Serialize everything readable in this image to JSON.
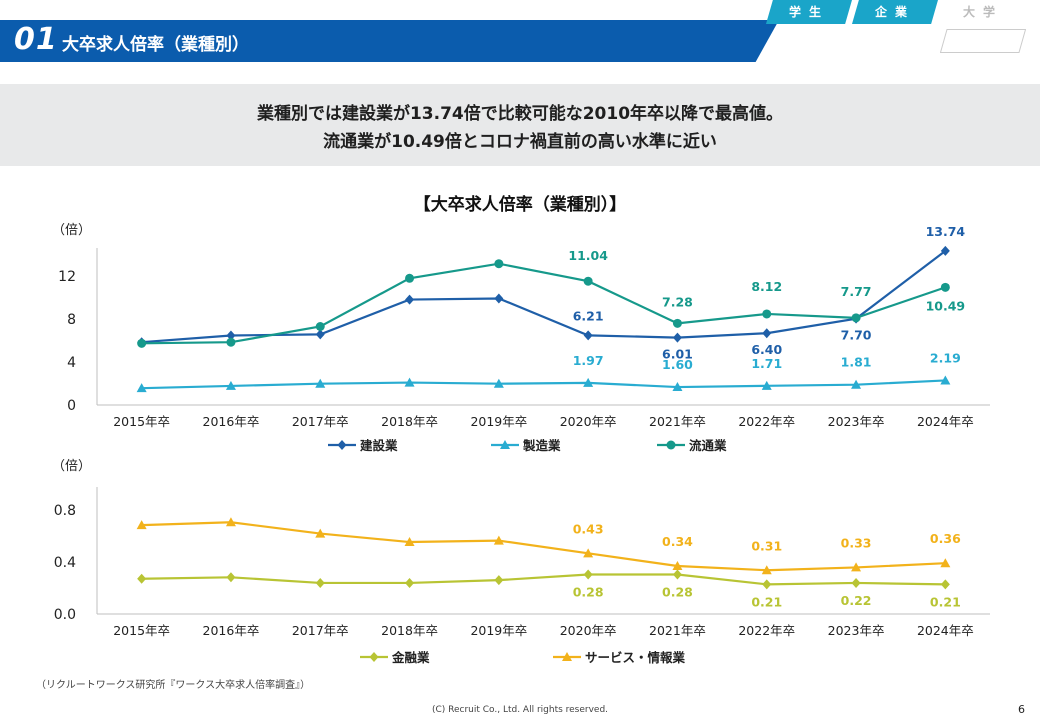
{
  "header": {
    "number": "01",
    "title": "大卒求人倍率（業種別）"
  },
  "tabs": [
    {
      "label": "学生"
    },
    {
      "label": "企業"
    },
    {
      "label": "大学"
    }
  ],
  "summary": {
    "line1": "業種別では建設業が13.74倍で比較可能な2010年卒以降で最高値。",
    "line2": "流通業が10.49倍とコロナ禍直前の高い水準に近い"
  },
  "footer": {
    "source": "（リクルートワークス研究所『ワークス大卒求人倍率調査』）",
    "copyright": "(C) Recruit  Co., Ltd. All rights reserved.",
    "page": "6"
  },
  "chart_data": [
    {
      "type": "line",
      "title": "【大卒求人倍率（業種別）】",
      "ylabel": "（倍）",
      "ylim": [
        0,
        14
      ],
      "yticks": [
        "0",
        "4",
        "8",
        "12"
      ],
      "categories": [
        "2015年卒",
        "2016年卒",
        "2017年卒",
        "2018年卒",
        "2019年卒",
        "2020年卒",
        "2021年卒",
        "2022年卒",
        "2023年卒",
        "2024年卒"
      ],
      "grid": false,
      "legend": "bottom",
      "series": [
        {
          "name": "建設業",
          "color": "#1f5fa8",
          "marker": "diamond",
          "values": [
            5.6,
            6.2,
            6.3,
            9.4,
            9.5,
            6.21,
            6.01,
            6.4,
            7.7,
            13.74
          ],
          "labels": [
            "",
            "",
            "",
            "",
            "",
            "6.21",
            "6.01",
            "6.40",
            "7.70",
            "13.74"
          ]
        },
        {
          "name": "製造業",
          "color": "#29acd1",
          "marker": "triangle",
          "values": [
            1.5,
            1.7,
            1.9,
            2.0,
            1.9,
            1.97,
            1.6,
            1.71,
            1.81,
            2.19
          ],
          "labels": [
            "",
            "",
            "",
            "",
            "",
            "1.97",
            "1.60",
            "1.71",
            "1.81",
            "2.19"
          ]
        },
        {
          "name": "流通業",
          "color": "#16998b",
          "marker": "circle",
          "values": [
            5.5,
            5.6,
            7.0,
            11.3,
            12.6,
            11.04,
            7.28,
            8.12,
            7.77,
            10.49
          ],
          "labels": [
            "",
            "",
            "",
            "",
            "",
            "11.04",
            "7.28",
            "8.12",
            "7.77",
            "10.49"
          ]
        }
      ]
    },
    {
      "type": "line",
      "ylabel": "（倍）",
      "ylim": [
        0,
        0.9
      ],
      "yticks": [
        "0.0",
        "0.4",
        "0.8"
      ],
      "categories": [
        "2015年卒",
        "2016年卒",
        "2017年卒",
        "2018年卒",
        "2019年卒",
        "2020年卒",
        "2021年卒",
        "2022年卒",
        "2023年卒",
        "2024年卒"
      ],
      "grid": false,
      "legend": "bottom",
      "series": [
        {
          "name": "金融業",
          "color": "#b8c434",
          "marker": "diamond",
          "values": [
            0.25,
            0.26,
            0.22,
            0.22,
            0.24,
            0.28,
            0.28,
            0.21,
            0.22,
            0.21
          ],
          "labels": [
            "",
            "",
            "",
            "",
            "",
            "0.28",
            "0.28",
            "0.21",
            "0.22",
            "0.21"
          ]
        },
        {
          "name": "サービス・情報業",
          "color": "#f2b21b",
          "marker": "triangle",
          "values": [
            0.63,
            0.65,
            0.57,
            0.51,
            0.52,
            0.43,
            0.34,
            0.31,
            0.33,
            0.36
          ],
          "labels": [
            "",
            "",
            "",
            "",
            "",
            "0.43",
            "0.34",
            "0.31",
            "0.33",
            "0.36"
          ]
        }
      ]
    }
  ]
}
